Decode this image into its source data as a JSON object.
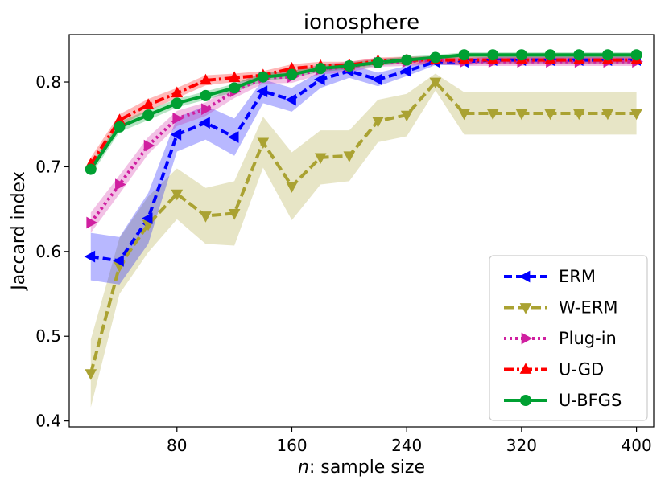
{
  "chart_data": {
    "type": "line",
    "title": "ionosphere",
    "xlabel": "n: sample size",
    "xlabel_var": "n",
    "xlabel_rest": ": sample size",
    "ylabel": "Jaccard index",
    "xlim": [
      5,
      412
    ],
    "ylim": [
      0.393,
      0.856
    ],
    "xticks": [
      80,
      160,
      240,
      320,
      400
    ],
    "yticks": [
      0.4,
      0.5,
      0.6,
      0.7,
      0.8
    ],
    "ytick_labels": [
      "0.4",
      "0.5",
      "0.6",
      "0.7",
      "0.8"
    ],
    "grid": false,
    "legend_position": "lower-right",
    "x": [
      20,
      40,
      60,
      80,
      100,
      120,
      140,
      160,
      180,
      200,
      220,
      240,
      260,
      280,
      300,
      320,
      340,
      360,
      380,
      400
    ],
    "series": [
      {
        "name": "ERM",
        "color": "#0000ff",
        "marker": "triangle-left",
        "dash": "10,5",
        "values": [
          0.594,
          0.589,
          0.639,
          0.738,
          0.752,
          0.735,
          0.789,
          0.779,
          0.803,
          0.813,
          0.803,
          0.813,
          0.824,
          0.824,
          0.826,
          0.826,
          0.826,
          0.826,
          0.826,
          0.826
        ],
        "band": [
          0.028,
          0.028,
          0.03,
          0.02,
          0.02,
          0.022,
          0.014,
          0.014,
          0.01,
          0.008,
          0.008,
          0.006,
          0.004,
          0.004,
          0.004,
          0.004,
          0.004,
          0.004,
          0.004,
          0.004
        ]
      },
      {
        "name": "W-ERM",
        "color": "#aaa232",
        "marker": "triangle-down",
        "dash": "12,5",
        "values": [
          0.456,
          0.583,
          0.632,
          0.668,
          0.642,
          0.645,
          0.729,
          0.677,
          0.711,
          0.713,
          0.754,
          0.761,
          0.8,
          0.763,
          0.763,
          0.763,
          0.763,
          0.763,
          0.763,
          0.763
        ],
        "band": [
          0.04,
          0.033,
          0.033,
          0.03,
          0.033,
          0.038,
          0.03,
          0.04,
          0.032,
          0.03,
          0.025,
          0.025,
          0.01,
          0.025,
          0.025,
          0.025,
          0.025,
          0.025,
          0.025,
          0.025
        ]
      },
      {
        "name": "Plug-in",
        "color": "#d01fa0",
        "marker": "triangle-right",
        "dash": "3,4",
        "values": [
          0.634,
          0.679,
          0.725,
          0.757,
          0.768,
          0.789,
          0.805,
          0.806,
          0.815,
          0.818,
          0.823,
          0.824,
          0.826,
          0.824,
          0.824,
          0.824,
          0.824,
          0.824,
          0.824,
          0.824
        ],
        "band": [
          0.012,
          0.011,
          0.01,
          0.009,
          0.008,
          0.008,
          0.007,
          0.007,
          0.006,
          0.006,
          0.005,
          0.005,
          0.005,
          0.005,
          0.005,
          0.005,
          0.005,
          0.005,
          0.005,
          0.005
        ]
      },
      {
        "name": "U-GD",
        "color": "#ff0000",
        "marker": "triangle-up",
        "dash": "12,4,3,4",
        "values": [
          0.703,
          0.755,
          0.773,
          0.787,
          0.802,
          0.805,
          0.808,
          0.816,
          0.819,
          0.82,
          0.825,
          0.826,
          0.826,
          0.826,
          0.826,
          0.826,
          0.826,
          0.826,
          0.826,
          0.826
        ],
        "band": [
          0.008,
          0.007,
          0.007,
          0.006,
          0.006,
          0.005,
          0.005,
          0.005,
          0.005,
          0.004,
          0.004,
          0.004,
          0.004,
          0.004,
          0.004,
          0.004,
          0.004,
          0.004,
          0.004,
          0.004
        ]
      },
      {
        "name": "U-BFGS",
        "color": "#00a032",
        "marker": "circle",
        "dash": "",
        "values": [
          0.697,
          0.747,
          0.761,
          0.775,
          0.784,
          0.793,
          0.806,
          0.809,
          0.816,
          0.819,
          0.823,
          0.826,
          0.829,
          0.832,
          0.832,
          0.832,
          0.832,
          0.832,
          0.832,
          0.832
        ],
        "band": [
          0.007,
          0.006,
          0.006,
          0.005,
          0.005,
          0.005,
          0.005,
          0.004,
          0.004,
          0.004,
          0.004,
          0.004,
          0.003,
          0.003,
          0.003,
          0.003,
          0.003,
          0.003,
          0.003,
          0.003
        ]
      }
    ]
  }
}
